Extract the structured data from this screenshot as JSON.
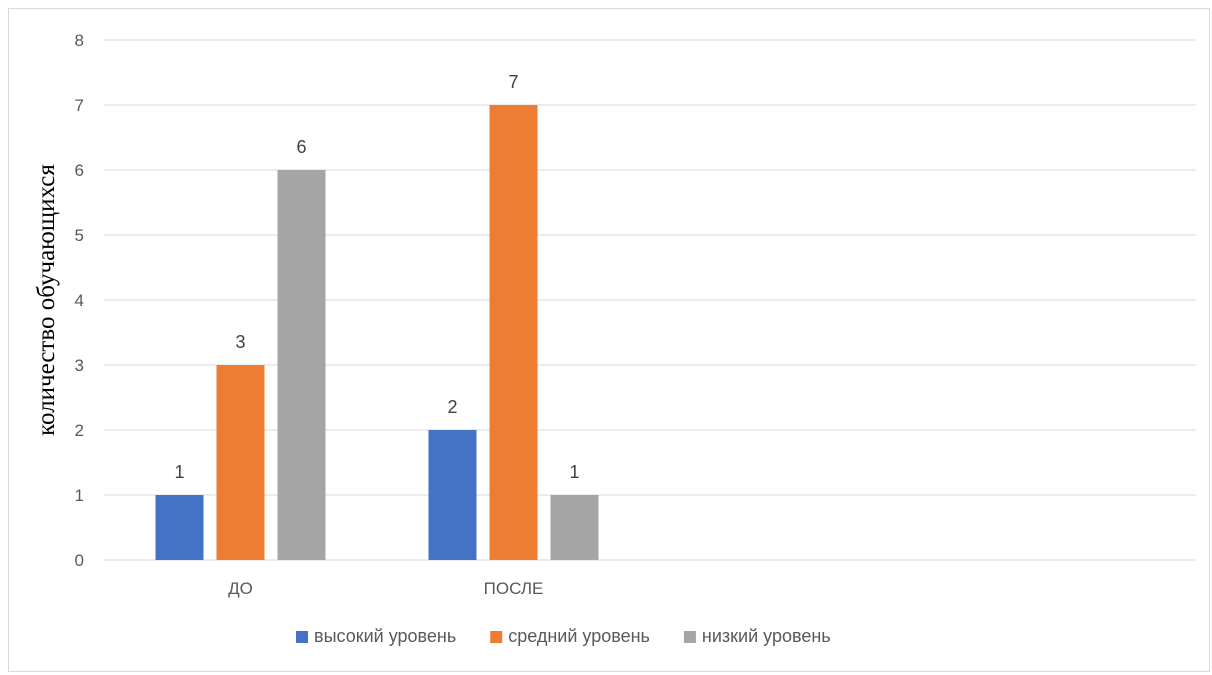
{
  "chart_data": {
    "type": "bar",
    "title": "",
    "xlabel": "",
    "ylabel": "количество обучающихся",
    "categories": [
      "ДО",
      "ПОСЛЕ",
      "",
      ""
    ],
    "ylim": [
      0,
      8
    ],
    "yticks": [
      0,
      1,
      2,
      3,
      4,
      5,
      6,
      7,
      8
    ],
    "grid": true,
    "legend_position": "bottom",
    "series": [
      {
        "name": "высокий уровень",
        "color": "#4472c4",
        "values": [
          1,
          2,
          null,
          null
        ]
      },
      {
        "name": "средний уровень",
        "color": "#ed7d31",
        "values": [
          3,
          7,
          null,
          null
        ]
      },
      {
        "name": "низкий уровень",
        "color": "#a5a5a5",
        "values": [
          6,
          1,
          null,
          null
        ]
      }
    ],
    "colors": {
      "gridline": "#d9d9d9",
      "axis": "#d9d9d9"
    }
  }
}
